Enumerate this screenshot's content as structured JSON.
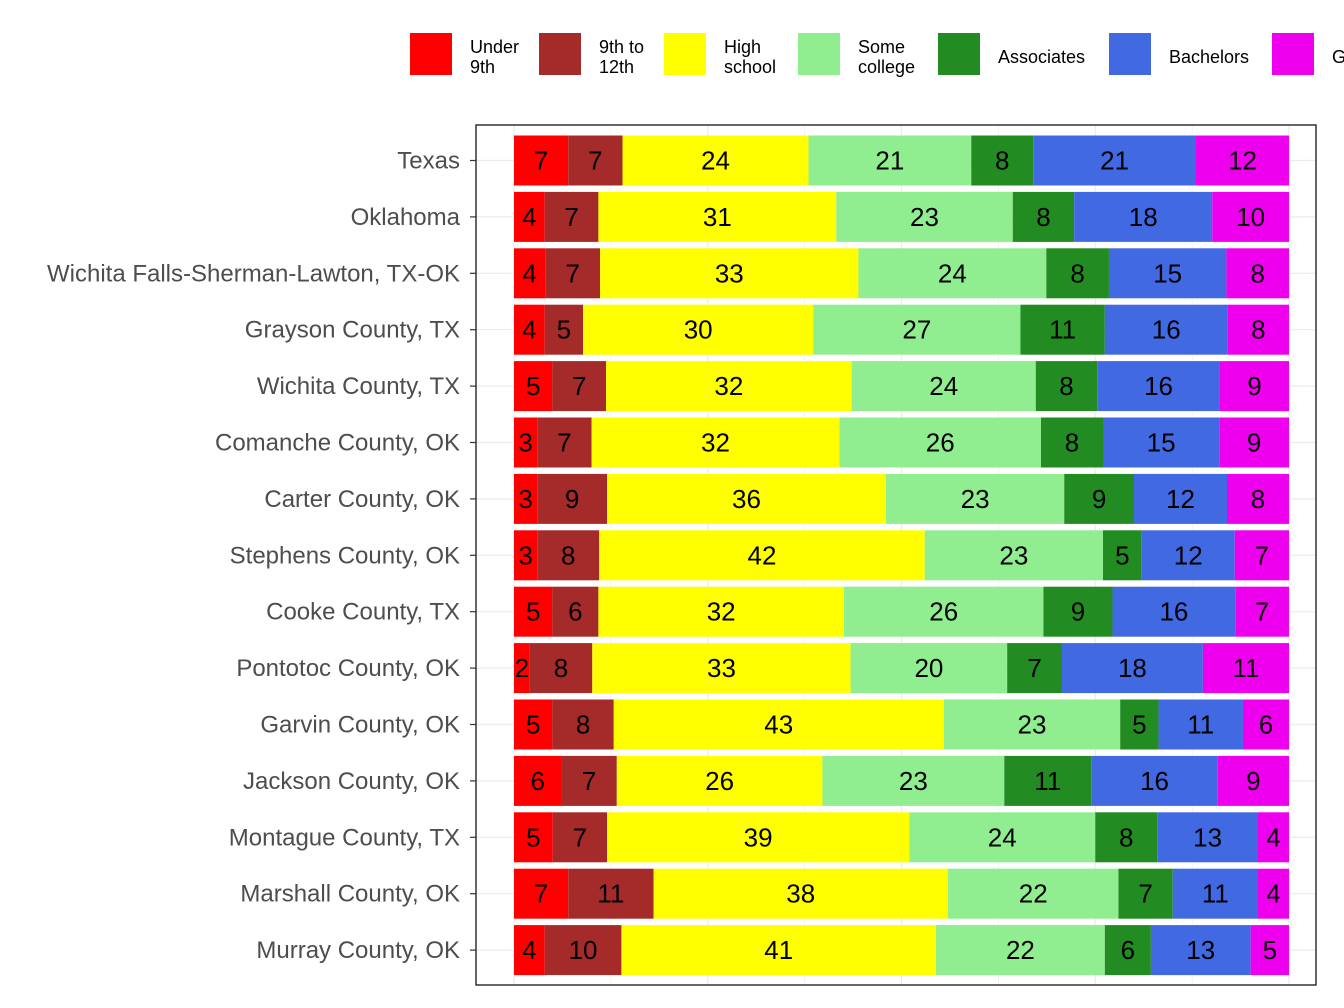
{
  "chart_data": {
    "type": "bar",
    "orientation": "horizontal",
    "stacked": true,
    "normalized_percent": true,
    "title": "",
    "xlabel": "",
    "ylabel": "",
    "xlim": [
      0,
      100
    ],
    "grid": true,
    "legend_position": "top",
    "categories": [
      "Texas",
      "Oklahoma",
      "Wichita Falls-Sherman-Lawton, TX-OK",
      "Grayson County, TX",
      "Wichita County, TX",
      "Comanche County, OK",
      "Carter County, OK",
      "Stephens County, OK",
      "Cooke County, TX",
      "Pontotoc County, OK",
      "Garvin County, OK",
      "Jackson County, OK",
      "Montague County, TX",
      "Marshall County, OK",
      "Murray County, OK"
    ],
    "series": [
      {
        "name": "Under 9th",
        "legend_lines": [
          "Under",
          "9th"
        ],
        "color": "#ff0000",
        "values": [
          7,
          4,
          4,
          4,
          5,
          3,
          3,
          3,
          5,
          2,
          5,
          6,
          5,
          7,
          4
        ]
      },
      {
        "name": "9th to 12th",
        "legend_lines": [
          "9th to",
          "12th"
        ],
        "color": "#a52a2a",
        "values": [
          7,
          7,
          7,
          5,
          7,
          7,
          9,
          8,
          6,
          8,
          8,
          7,
          7,
          11,
          10
        ]
      },
      {
        "name": "High school",
        "legend_lines": [
          "High",
          "school"
        ],
        "color": "#ffff00",
        "values": [
          24,
          31,
          33,
          30,
          32,
          32,
          36,
          42,
          32,
          33,
          43,
          26,
          39,
          38,
          41
        ]
      },
      {
        "name": "Some college",
        "legend_lines": [
          "Some",
          "college"
        ],
        "color": "#90ee90",
        "values": [
          21,
          23,
          24,
          27,
          24,
          26,
          23,
          23,
          26,
          20,
          23,
          23,
          24,
          22,
          22
        ]
      },
      {
        "name": "Associates",
        "legend_lines": [
          "Associates"
        ],
        "color": "#228b22",
        "values": [
          8,
          8,
          8,
          11,
          8,
          8,
          9,
          5,
          9,
          7,
          5,
          11,
          8,
          7,
          6
        ]
      },
      {
        "name": "Bachelors",
        "legend_lines": [
          "Bachelors"
        ],
        "color": "#4169e1",
        "values": [
          21,
          18,
          15,
          16,
          16,
          15,
          12,
          12,
          16,
          18,
          11,
          16,
          13,
          11,
          13
        ]
      },
      {
        "name": "G",
        "legend_lines": [
          "G"
        ],
        "color": "#ee00ee",
        "values": [
          12,
          10,
          8,
          8,
          9,
          9,
          8,
          7,
          7,
          11,
          6,
          9,
          4,
          4,
          5
        ]
      }
    ]
  }
}
